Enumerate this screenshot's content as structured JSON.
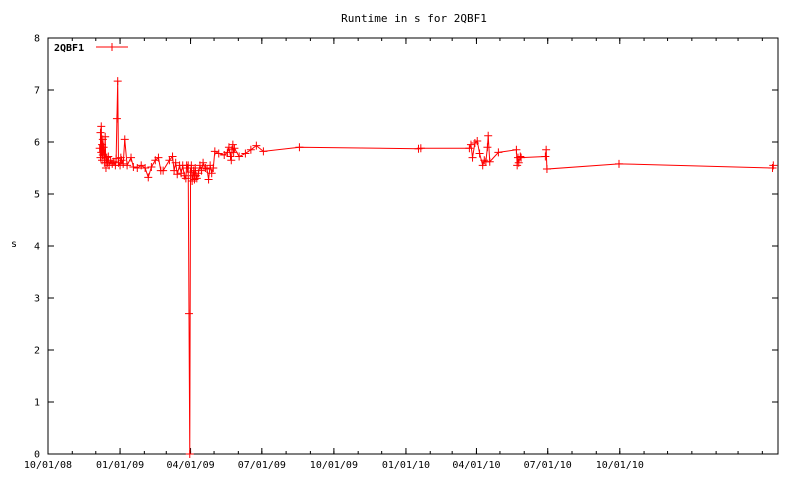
{
  "chart_data": {
    "type": "line",
    "title": "Runtime in s for 2QBF1",
    "xlabel": "",
    "ylabel": "s",
    "ylim": [
      0,
      8
    ],
    "xlim": [
      "2008-10-01",
      "2011-04-21"
    ],
    "y_ticks": [
      "0",
      "1",
      "2",
      "3",
      "4",
      "5",
      "6",
      "7",
      "8"
    ],
    "x_ticks": [
      {
        "date": "2008-10-01",
        "label": "10/01/08"
      },
      {
        "date": "2009-01-01",
        "label": "01/01/09"
      },
      {
        "date": "2009-04-01",
        "label": "04/01/09"
      },
      {
        "date": "2009-07-01",
        "label": "07/01/09"
      },
      {
        "date": "2009-10-01",
        "label": "10/01/09"
      },
      {
        "date": "2010-01-01",
        "label": "01/01/10"
      },
      {
        "date": "2010-04-01",
        "label": "04/01/10"
      },
      {
        "date": "2010-07-01",
        "label": "07/01/10"
      },
      {
        "date": "2010-10-01",
        "label": "10/01/10"
      }
    ],
    "grid": false,
    "legend_position": "top-left",
    "series": [
      {
        "name": "2QBF1",
        "color": "#ff0000",
        "marker": "plus",
        "points": [
          [
            "2008-12-06",
            5.88
          ],
          [
            "2008-12-07",
            5.7
          ],
          [
            "2008-12-07",
            6.18
          ],
          [
            "2008-12-08",
            5.8
          ],
          [
            "2008-12-08",
            6.3
          ],
          [
            "2008-12-09",
            5.65
          ],
          [
            "2008-12-09",
            5.95
          ],
          [
            "2008-12-10",
            5.75
          ],
          [
            "2008-12-10",
            6.05
          ],
          [
            "2008-12-11",
            5.9
          ],
          [
            "2008-12-12",
            5.6
          ],
          [
            "2008-12-13",
            6.1
          ],
          [
            "2008-12-14",
            5.5
          ],
          [
            "2008-12-15",
            5.7
          ],
          [
            "2008-12-16",
            5.6
          ],
          [
            "2008-12-17",
            5.72
          ],
          [
            "2008-12-18",
            5.55
          ],
          [
            "2008-12-20",
            5.65
          ],
          [
            "2008-12-22",
            5.58
          ],
          [
            "2008-12-24",
            5.62
          ],
          [
            "2008-12-26",
            5.55
          ],
          [
            "2008-12-27",
            5.68
          ],
          [
            "2008-12-28",
            6.45
          ],
          [
            "2008-12-29",
            7.17
          ],
          [
            "2008-12-30",
            5.6
          ],
          [
            "2009-01-01",
            5.55
          ],
          [
            "2009-01-02",
            5.7
          ],
          [
            "2009-01-03",
            5.65
          ],
          [
            "2009-01-05",
            5.58
          ],
          [
            "2009-01-07",
            6.05
          ],
          [
            "2009-01-10",
            5.55
          ],
          [
            "2009-01-15",
            5.7
          ],
          [
            "2009-01-18",
            5.52
          ],
          [
            "2009-01-23",
            5.5
          ],
          [
            "2009-01-28",
            5.55
          ],
          [
            "2009-02-02",
            5.5
          ],
          [
            "2009-02-06",
            5.32
          ],
          [
            "2009-02-10",
            5.52
          ],
          [
            "2009-02-15",
            5.65
          ],
          [
            "2009-02-19",
            5.7
          ],
          [
            "2009-02-22",
            5.45
          ],
          [
            "2009-02-25",
            5.45
          ],
          [
            "2009-03-05",
            5.65
          ],
          [
            "2009-03-09",
            5.72
          ],
          [
            "2009-03-11",
            5.45
          ],
          [
            "2009-03-13",
            5.6
          ],
          [
            "2009-03-15",
            5.38
          ],
          [
            "2009-03-18",
            5.55
          ],
          [
            "2009-03-20",
            5.4
          ],
          [
            "2009-03-22",
            5.55
          ],
          [
            "2009-03-24",
            5.35
          ],
          [
            "2009-03-26",
            5.3
          ],
          [
            "2009-03-27",
            5.55
          ],
          [
            "2009-03-28",
            5.5
          ],
          [
            "2009-03-29",
            5.55
          ],
          [
            "2009-03-30",
            2.7
          ],
          [
            "2009-03-31",
            0.0
          ],
          [
            "2009-04-01",
            5.42
          ],
          [
            "2009-04-02",
            5.55
          ],
          [
            "2009-04-03",
            5.25
          ],
          [
            "2009-04-04",
            5.35
          ],
          [
            "2009-04-05",
            5.45
          ],
          [
            "2009-04-06",
            5.28
          ],
          [
            "2009-04-07",
            5.5
          ],
          [
            "2009-04-08",
            5.35
          ],
          [
            "2009-04-09",
            5.3
          ],
          [
            "2009-04-11",
            5.4
          ],
          [
            "2009-04-13",
            5.55
          ],
          [
            "2009-04-15",
            5.45
          ],
          [
            "2009-04-17",
            5.6
          ],
          [
            "2009-04-20",
            5.5
          ],
          [
            "2009-04-22",
            5.48
          ],
          [
            "2009-04-24",
            5.28
          ],
          [
            "2009-04-26",
            5.55
          ],
          [
            "2009-04-28",
            5.4
          ],
          [
            "2009-04-30",
            5.5
          ],
          [
            "2009-05-02",
            5.82
          ],
          [
            "2009-05-07",
            5.78
          ],
          [
            "2009-05-14",
            5.75
          ],
          [
            "2009-05-18",
            5.8
          ],
          [
            "2009-05-20",
            5.9
          ],
          [
            "2009-05-22",
            5.72
          ],
          [
            "2009-05-23",
            5.65
          ],
          [
            "2009-05-24",
            5.85
          ],
          [
            "2009-05-25",
            5.95
          ],
          [
            "2009-05-26",
            5.8
          ],
          [
            "2009-05-27",
            5.88
          ],
          [
            "2009-06-02",
            5.72
          ],
          [
            "2009-06-10",
            5.78
          ],
          [
            "2009-06-17",
            5.85
          ],
          [
            "2009-06-24",
            5.93
          ],
          [
            "2009-07-03",
            5.82
          ],
          [
            "2009-08-18",
            5.9
          ],
          [
            "2010-01-17",
            5.87
          ],
          [
            "2010-01-20",
            5.88
          ],
          [
            "2010-03-23",
            5.88
          ],
          [
            "2010-03-25",
            5.95
          ],
          [
            "2010-03-27",
            5.7
          ],
          [
            "2010-03-30",
            5.98
          ],
          [
            "2010-04-02",
            6.02
          ],
          [
            "2010-04-05",
            5.78
          ],
          [
            "2010-04-09",
            5.55
          ],
          [
            "2010-04-11",
            5.65
          ],
          [
            "2010-04-13",
            5.62
          ],
          [
            "2010-04-15",
            5.9
          ],
          [
            "2010-04-16",
            6.12
          ],
          [
            "2010-04-18",
            5.62
          ],
          [
            "2010-04-29",
            5.8
          ],
          [
            "2010-05-22",
            5.85
          ],
          [
            "2010-05-23",
            5.55
          ],
          [
            "2010-05-24",
            5.7
          ],
          [
            "2010-05-25",
            5.6
          ],
          [
            "2010-05-27",
            5.72
          ],
          [
            "2010-05-28",
            5.7
          ],
          [
            "2010-06-28",
            5.72
          ],
          [
            "2010-06-29",
            5.85
          ],
          [
            "2010-06-30",
            5.48
          ],
          [
            "2010-09-30",
            5.58
          ],
          [
            "2011-04-14",
            5.5
          ],
          [
            "2011-04-15",
            5.55
          ]
        ]
      }
    ]
  }
}
